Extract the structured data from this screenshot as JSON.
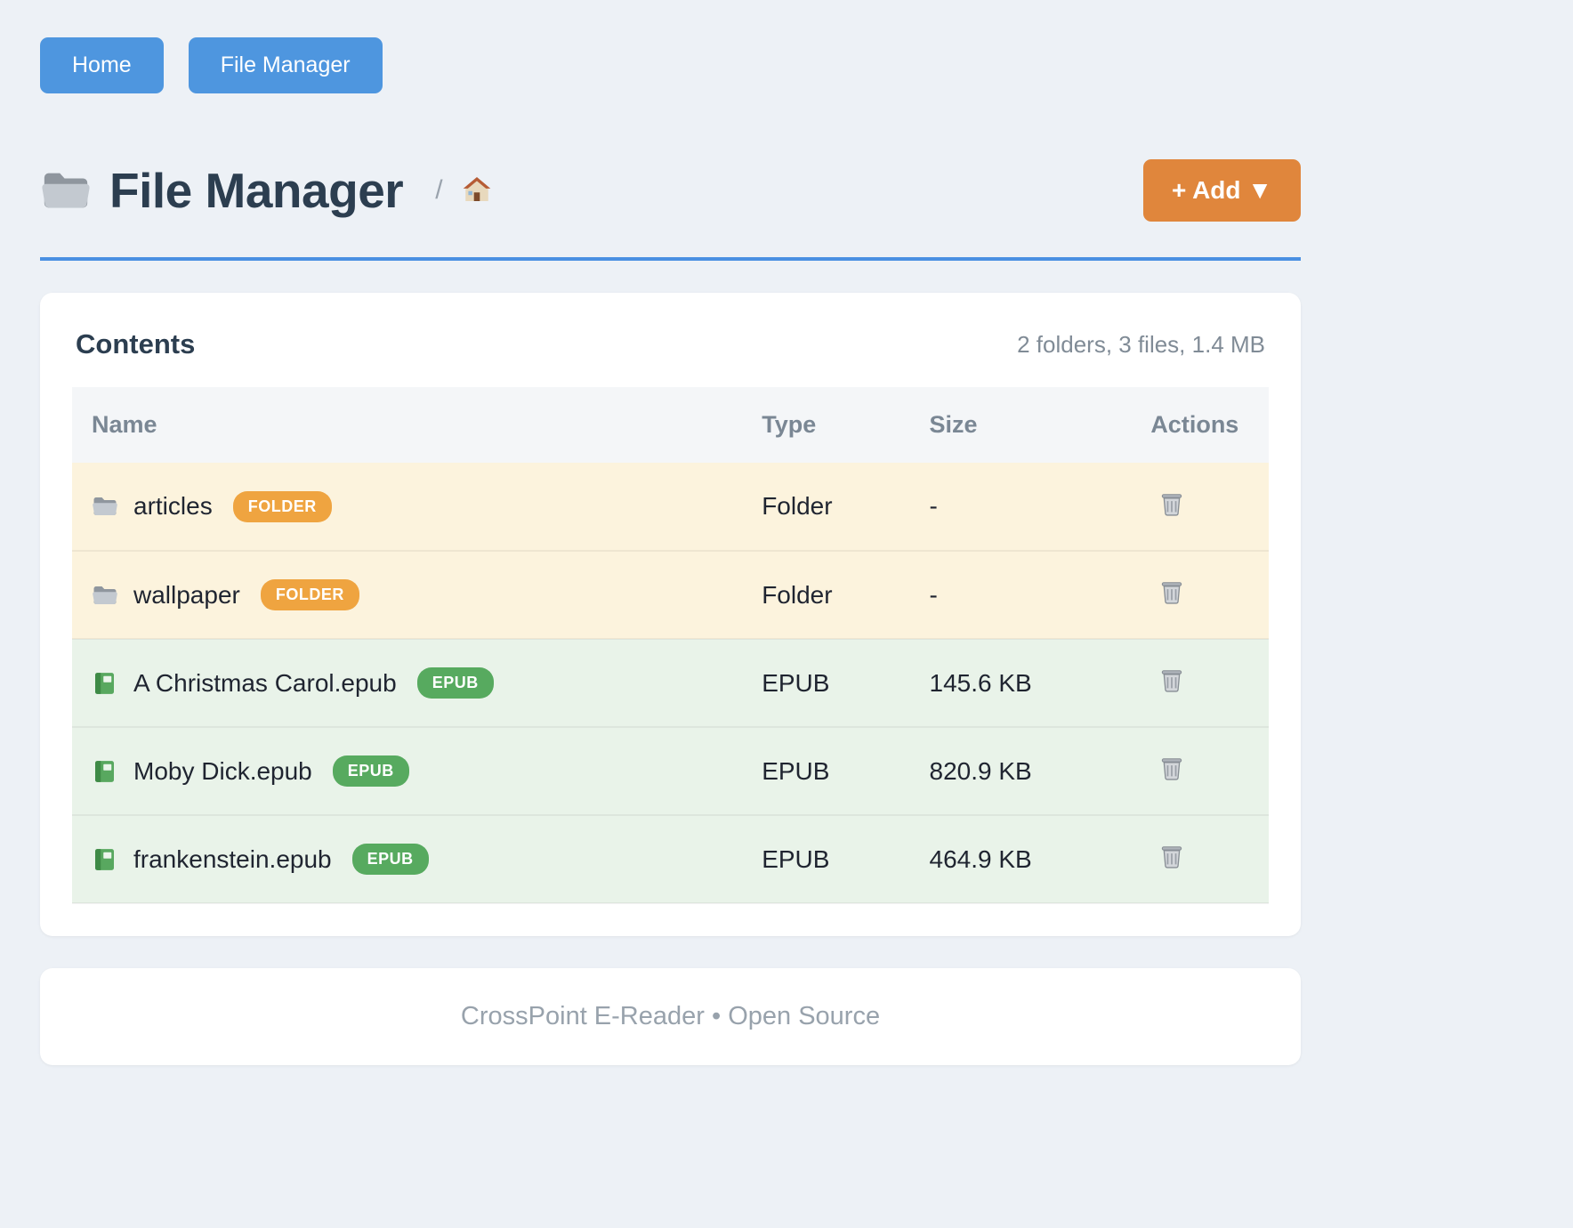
{
  "nav": {
    "home_label": "Home",
    "file_manager_label": "File Manager"
  },
  "header": {
    "title": "File Manager",
    "breadcrumb_separator": "/",
    "breadcrumb_home_icon": "house-icon",
    "title_icon": "folder-icon",
    "add_button_label": "+ Add ▼"
  },
  "contents": {
    "title": "Contents",
    "summary": "2 folders, 3 files, 1.4 MB",
    "columns": [
      "Name",
      "Type",
      "Size",
      "Actions"
    ],
    "rows": [
      {
        "kind": "folder",
        "icon": "folder-icon",
        "name": "articles",
        "badge": "FOLDER",
        "type": "Folder",
        "size": "-",
        "action_icon": "trash-icon"
      },
      {
        "kind": "folder",
        "icon": "folder-icon",
        "name": "wallpaper",
        "badge": "FOLDER",
        "type": "Folder",
        "size": "-",
        "action_icon": "trash-icon"
      },
      {
        "kind": "epub",
        "icon": "green-book-icon",
        "name": "A Christmas Carol.epub",
        "badge": "EPUB",
        "type": "EPUB",
        "size": "145.6 KB",
        "action_icon": "trash-icon"
      },
      {
        "kind": "epub",
        "icon": "green-book-icon",
        "name": "Moby Dick.epub",
        "badge": "EPUB",
        "type": "EPUB",
        "size": "820.9 KB",
        "action_icon": "trash-icon"
      },
      {
        "kind": "epub",
        "icon": "green-book-icon",
        "name": "frankenstein.epub",
        "badge": "EPUB",
        "type": "EPUB",
        "size": "464.9 KB",
        "action_icon": "trash-icon"
      }
    ]
  },
  "footer": {
    "text": "CrossPoint E-Reader • Open Source"
  },
  "colors": {
    "page_bg": "#edf1f6",
    "nav_button": "#4e96df",
    "add_button": "#e0863c",
    "divider": "#4a90e2",
    "folder_badge": "#efa440",
    "epub_badge": "#57aa5f",
    "folder_row_bg": "#fcf3dd",
    "epub_row_bg": "#e9f3e9"
  }
}
